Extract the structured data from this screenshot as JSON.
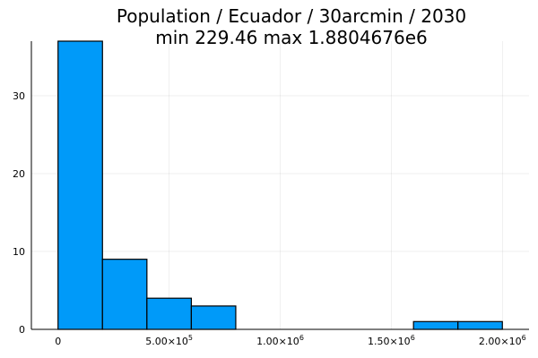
{
  "chart_data": {
    "type": "bar",
    "title_line1": "Population / Ecuador / 30arcmin / 2030",
    "title_line2": "min 229.46  max 1.8804676e6",
    "xlabel": "",
    "ylabel": "",
    "bins": [
      {
        "start": 0,
        "end": 200000,
        "count": 37
      },
      {
        "start": 200000,
        "end": 400000,
        "count": 9
      },
      {
        "start": 400000,
        "end": 600000,
        "count": 4
      },
      {
        "start": 600000,
        "end": 800000,
        "count": 3
      },
      {
        "start": 800000,
        "end": 1000000,
        "count": 0
      },
      {
        "start": 1000000,
        "end": 1200000,
        "count": 0
      },
      {
        "start": 1200000,
        "end": 1400000,
        "count": 0
      },
      {
        "start": 1400000,
        "end": 1600000,
        "count": 0
      },
      {
        "start": 1600000,
        "end": 1800000,
        "count": 1
      },
      {
        "start": 1800000,
        "end": 2000000,
        "count": 1
      }
    ],
    "xlim": [
      -120000,
      2120000
    ],
    "ylim": [
      0,
      37
    ],
    "x_ticks": [
      {
        "value": 0,
        "mantissa": "0",
        "exponent": ""
      },
      {
        "value": 500000,
        "mantissa": "5.00×10",
        "exponent": "5"
      },
      {
        "value": 1000000,
        "mantissa": "1.00×10",
        "exponent": "6"
      },
      {
        "value": 1500000,
        "mantissa": "1.50×10",
        "exponent": "6"
      },
      {
        "value": 2000000,
        "mantissa": "2.00×10",
        "exponent": "6"
      }
    ],
    "y_ticks": [
      {
        "value": 0,
        "label": "0"
      },
      {
        "value": 10,
        "label": "10"
      },
      {
        "value": 20,
        "label": "20"
      },
      {
        "value": 30,
        "label": "30"
      }
    ],
    "grid": true,
    "legend": "none",
    "bar_color": "#009af9"
  }
}
